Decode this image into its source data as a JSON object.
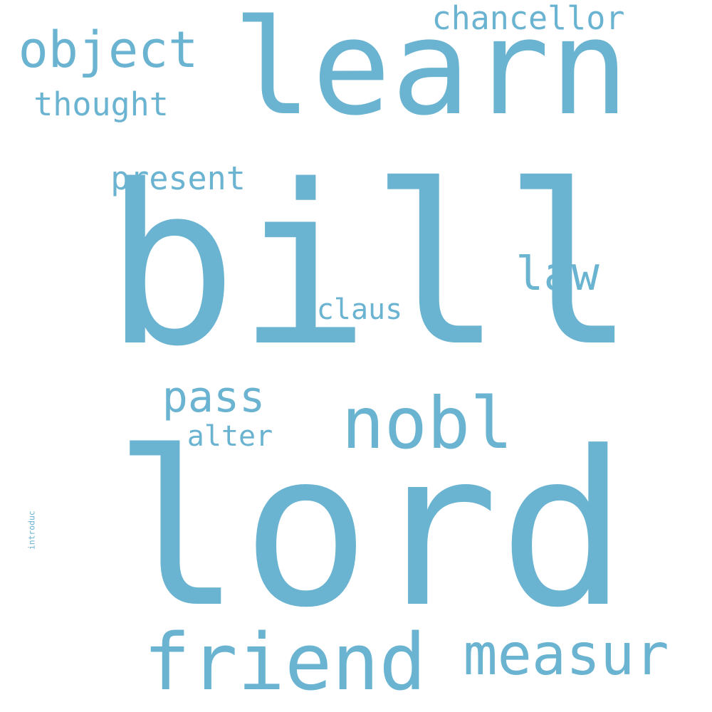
{
  "word_cloud": {
    "color": "#6ab3d1",
    "words": [
      {
        "id": "lord",
        "text": "lord",
        "orientation": "horizontal"
      },
      {
        "id": "bill",
        "text": "bill",
        "orientation": "horizontal"
      },
      {
        "id": "learn",
        "text": "learn",
        "orientation": "horizontal"
      },
      {
        "id": "friend",
        "text": "friend",
        "orientation": "horizontal"
      },
      {
        "id": "measur",
        "text": "measur",
        "orientation": "horizontal"
      },
      {
        "id": "nobl",
        "text": "nobl",
        "orientation": "horizontal"
      },
      {
        "id": "introduc",
        "text": "introduc",
        "orientation": "vertical"
      },
      {
        "id": "object",
        "text": "object",
        "orientation": "horizontal"
      },
      {
        "id": "pass",
        "text": "pass",
        "orientation": "horizontal"
      },
      {
        "id": "law",
        "text": "law",
        "orientation": "horizontal"
      },
      {
        "id": "chancellor",
        "text": "chancellor",
        "orientation": "horizontal"
      },
      {
        "id": "present",
        "text": "present",
        "orientation": "horizontal"
      },
      {
        "id": "thought",
        "text": "thought",
        "orientation": "horizontal"
      },
      {
        "id": "claus",
        "text": "claus",
        "orientation": "horizontal"
      },
      {
        "id": "alter",
        "text": "alter",
        "orientation": "horizontal"
      }
    ]
  }
}
